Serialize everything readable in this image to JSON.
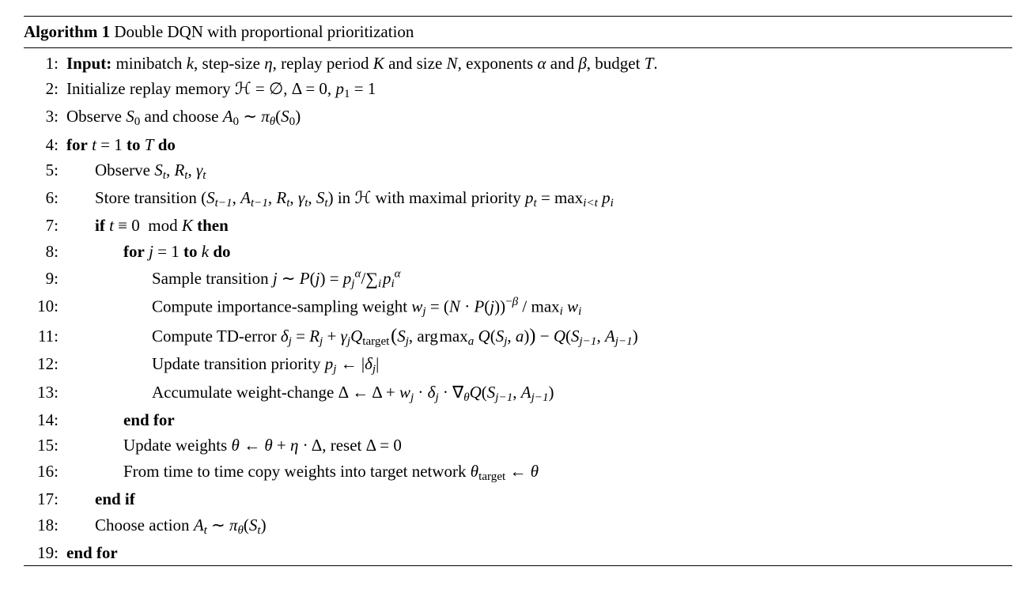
{
  "algorithm": {
    "title_prefix": "Algorithm 1",
    "title_rest": " Double DQN with proportional prioritization",
    "rule_color": "#000000",
    "fonts": {
      "body_family": "Times New Roman",
      "body_size_pt": 16
    },
    "lines": [
      {
        "n": "1:",
        "indent": 0,
        "html": "<span class='b'>Input:</span> minibatch <span class='mi'>k</span>, step-size <span class='mi'>η</span>, replay period <span class='mi'>K</span> and size <span class='mi'>N</span>, exponents <span class='mi'>α</span> and <span class='mi'>β</span>, budget <span class='mi'>T</span>."
      },
      {
        "n": "2:",
        "indent": 0,
        "html": "Initialize replay memory <span class='cal'>ℋ</span> = ∅, Δ = 0, <span class='mi'>p</span><span class='subsc'>1</span> = 1"
      },
      {
        "n": "3:",
        "indent": 0,
        "html": "Observe <span class='mi'>S</span><span class='subsc'>0</span> and choose <span class='mi'>A</span><span class='subsc'>0</span> ∼ <span class='mi'>π</span><span class='subi'>θ</span>(<span class='mi'>S</span><span class='subsc'>0</span>)"
      },
      {
        "n": "4:",
        "indent": 0,
        "html": "<span class='b'>for</span> <span class='mi'>t</span> = 1 <span class='b'>to</span> <span class='mi'>T</span> <span class='b'>do</span>"
      },
      {
        "n": "5:",
        "indent": 1,
        "html": "Observe <span class='mi'>S</span><span class='subi'>t</span>, <span class='mi'>R</span><span class='subi'>t</span>, <span class='mi'>γ</span><span class='subi'>t</span>"
      },
      {
        "n": "6:",
        "indent": 1,
        "html": "Store transition (<span class='mi'>S</span><span class='subi'>t−1</span>, <span class='mi'>A</span><span class='subi'>t−1</span>, <span class='mi'>R</span><span class='subi'>t</span>, <span class='mi'>γ</span><span class='subi'>t</span>, <span class='mi'>S</span><span class='subi'>t</span>) in <span class='cal'>ℋ</span> with maximal priority <span class='mi'>p</span><span class='subi'>t</span> = max<span class='subi'>i&lt;t</span>&nbsp;<span class='mi'>p</span><span class='subi'>i</span>"
      },
      {
        "n": "7:",
        "indent": 1,
        "html": "<span class='b'>if</span> <span class='mi'>t</span> ≡ 0&nbsp;&nbsp;mod&nbsp;<span class='mi'>K</span> <span class='b'>then</span>"
      },
      {
        "n": "8:",
        "indent": 2,
        "html": "<span class='b'>for</span> <span class='mi'>j</span> = 1 <span class='b'>to</span> <span class='mi'>k</span> <span class='b'>do</span>"
      },
      {
        "n": "9:",
        "indent": 3,
        "html": "Sample transition <span class='mi'>j</span> ∼ <span class='mi'>P</span>(<span class='mi'>j</span>) = <span class='mi'>p</span><span class='subi'>j</span><span class='supi'>α</span>/<span class='sum'>∑</span><span class='subi'>i</span>&#8202;<span class='mi'>p</span><span class='subi'>i</span><span class='supi'>α</span>"
      },
      {
        "n": "10:",
        "indent": 3,
        "html": "Compute importance-sampling weight <span class='mi'>w</span><span class='subi'>j</span> = (<span class='mi'>N</span> · <span class='mi'>P</span>(<span class='mi'>j</span>))<span class='supsc'>−<span class='mi'>β</span></span> / max<span class='subi'>i</span>&nbsp;<span class='mi'>w</span><span class='subi'>i</span>"
      },
      {
        "n": "11:",
        "indent": 3,
        "html": "Compute TD-error <span class='mi'>δ</span><span class='subi'>j</span> = <span class='mi'>R</span><span class='subi'>j</span> + <span class='mi'>γ</span><span class='subi'>j</span><span class='mi'>Q</span><span class='subsc'>target</span>&#8202;<span class='big'>(</span><span class='mi'>S</span><span class='subi'>j</span>, arg&#8202;max<span class='subi'>a</span>&nbsp;<span class='mi'>Q</span>(<span class='mi'>S</span><span class='subi'>j</span>, <span class='mi'>a</span>)<span class='big'>)</span> − <span class='mi'>Q</span>(<span class='mi'>S</span><span class='subi'>j−1</span>, <span class='mi'>A</span><span class='subi'>j−1</span>)"
      },
      {
        "n": "12:",
        "indent": 3,
        "html": "Update transition priority <span class='mi'>p</span><span class='subi'>j</span> ← |<span class='mi'>δ</span><span class='subi'>j</span>|"
      },
      {
        "n": "13:",
        "indent": 3,
        "html": "Accumulate weight-change Δ ← Δ + <span class='mi'>w</span><span class='subi'>j</span> · <span class='mi'>δ</span><span class='subi'>j</span> · ∇<span class='subi'>θ</span><span class='mi'>Q</span>(<span class='mi'>S</span><span class='subi'>j−1</span>, <span class='mi'>A</span><span class='subi'>j−1</span>)"
      },
      {
        "n": "14:",
        "indent": 2,
        "html": "<span class='b'>end for</span>"
      },
      {
        "n": "15:",
        "indent": 2,
        "html": "Update weights <span class='mi'>θ</span> ← <span class='mi'>θ</span> + <span class='mi'>η</span> · Δ, reset Δ = 0"
      },
      {
        "n": "16:",
        "indent": 2,
        "html": "From time to time copy weights into target network <span class='mi'>θ</span><span class='subsc'>target</span> ← <span class='mi'>θ</span>"
      },
      {
        "n": "17:",
        "indent": 1,
        "html": "<span class='b'>end if</span>"
      },
      {
        "n": "18:",
        "indent": 1,
        "html": "Choose action <span class='mi'>A</span><span class='subi'>t</span> ∼ <span class='mi'>π</span><span class='subi'>θ</span>(<span class='mi'>S</span><span class='subi'>t</span>)"
      },
      {
        "n": "19:",
        "indent": 0,
        "html": "<span class='b'>end for</span>"
      }
    ]
  }
}
